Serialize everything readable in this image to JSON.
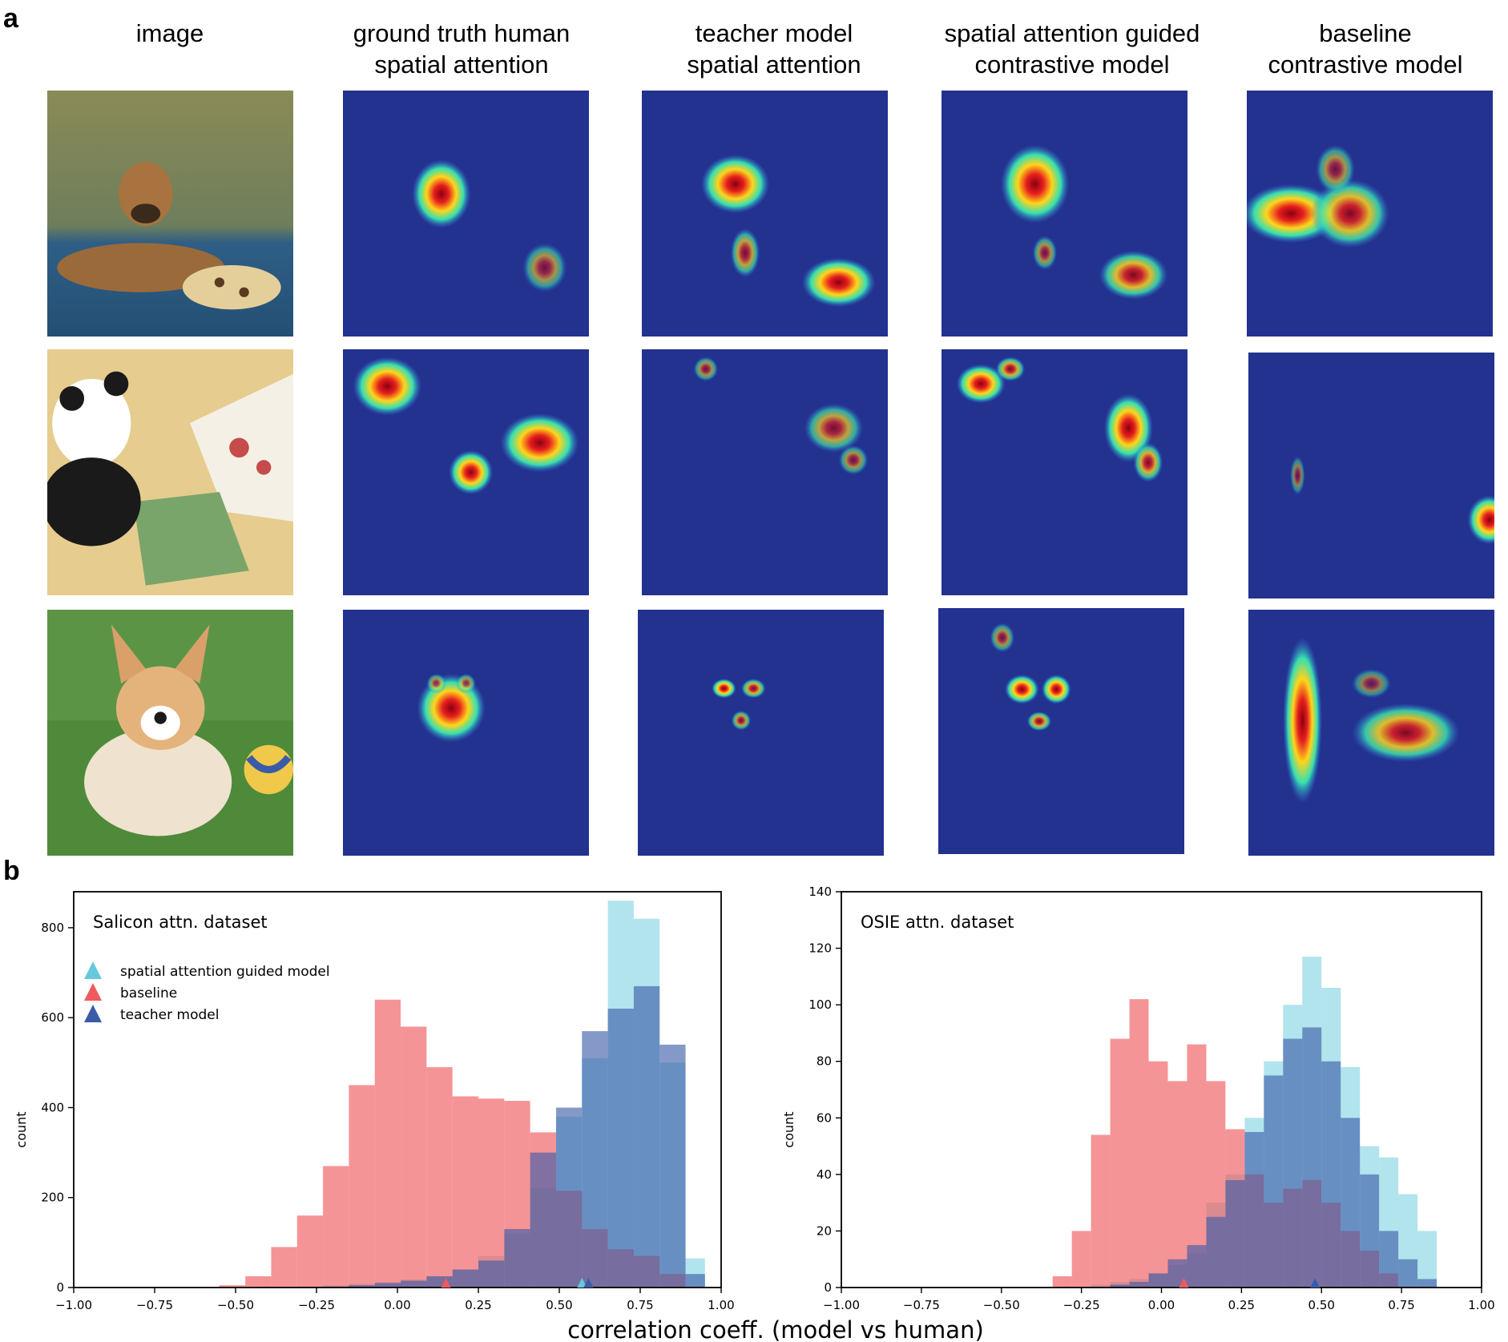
{
  "panels": {
    "a": "a",
    "b": "b"
  },
  "columns": [
    {
      "line1": "image",
      "line2": ""
    },
    {
      "line1": "ground truth human",
      "line2": "spatial attention"
    },
    {
      "line1": "teacher model",
      "line2": "spatial attention"
    },
    {
      "line1": "spatial attention guided",
      "line2": "contrastive model"
    },
    {
      "line1": "baseline",
      "line2": "contrastive model"
    }
  ],
  "rows": [
    {
      "subject": "puppy-on-blue-mat"
    },
    {
      "subject": "panda-plush-and-flower-card"
    },
    {
      "subject": "corgi-puppy-on-grass"
    }
  ],
  "colors": {
    "guided": "#66c9dc",
    "baseline": "#f05a5e",
    "teacher": "#3a5ba8",
    "heat_low": "#1e2b8c",
    "heat_high": "#d7191c"
  },
  "xlabel": "correlation coeff. (model vs human)",
  "chart_data": [
    {
      "type": "bar",
      "title": "Salicon attn. dataset",
      "xlabel": "correlation coeff. (model vs human)",
      "ylabel": "count",
      "xlim": [
        -1.0,
        1.0
      ],
      "ylim": [
        0,
        880
      ],
      "xticks": [
        -1.0,
        -0.75,
        -0.5,
        -0.25,
        0.0,
        0.25,
        0.5,
        0.75,
        1.0
      ],
      "xtick_labels": [
        "−1.00",
        "−0.75",
        "−0.50",
        "−0.25",
        "0.00",
        "0.25",
        "0.50",
        "0.75",
        "1.00"
      ],
      "yticks": [
        0,
        200,
        400,
        600,
        800
      ],
      "ytick_labels": [
        "0",
        "200",
        "400",
        "600",
        "800"
      ],
      "legend_position": "upper-left",
      "bin_edges": [
        -0.55,
        -0.47,
        -0.39,
        -0.31,
        -0.23,
        -0.15,
        -0.07,
        0.01,
        0.09,
        0.17,
        0.25,
        0.33,
        0.41,
        0.49,
        0.57,
        0.65,
        0.73,
        0.81,
        0.89,
        0.95
      ],
      "series": [
        {
          "name": "spatial attention guided model",
          "color": "#66c9dc",
          "marker_x": 0.57,
          "values": [
            0,
            0,
            0,
            2,
            5,
            8,
            12,
            18,
            25,
            40,
            70,
            120,
            220,
            380,
            510,
            860,
            820,
            500,
            65
          ]
        },
        {
          "name": "baseline",
          "color": "#f05a5e",
          "marker_x": 0.15,
          "values": [
            5,
            25,
            90,
            160,
            270,
            450,
            640,
            580,
            490,
            425,
            420,
            415,
            345,
            215,
            130,
            85,
            70,
            30,
            0
          ]
        },
        {
          "name": "teacher model",
          "color": "#3a5ba8",
          "marker_x": 0.59,
          "values": [
            0,
            0,
            0,
            0,
            2,
            5,
            10,
            15,
            25,
            40,
            60,
            130,
            300,
            400,
            570,
            620,
            670,
            540,
            30
          ]
        }
      ]
    },
    {
      "type": "bar",
      "title": "OSIE attn. dataset",
      "xlabel": "correlation coeff. (model vs human)",
      "ylabel": "count",
      "xlim": [
        -1.0,
        1.0
      ],
      "ylim": [
        0,
        140
      ],
      "xticks": [
        -1.0,
        -0.75,
        -0.5,
        -0.25,
        0.0,
        0.25,
        0.5,
        0.75,
        1.0
      ],
      "xtick_labels": [
        "−1.00",
        "−0.75",
        "−0.50",
        "−0.25",
        "0.00",
        "0.25",
        "0.50",
        "0.75",
        "1.00"
      ],
      "yticks": [
        0,
        20,
        40,
        60,
        80,
        100,
        120,
        140
      ],
      "ytick_labels": [
        "0",
        "20",
        "40",
        "60",
        "80",
        "100",
        "120",
        "140"
      ],
      "bin_edges": [
        -0.34,
        -0.28,
        -0.22,
        -0.16,
        -0.1,
        -0.04,
        0.02,
        0.08,
        0.14,
        0.2,
        0.26,
        0.32,
        0.38,
        0.44,
        0.5,
        0.56,
        0.62,
        0.68,
        0.74,
        0.8,
        0.86
      ],
      "series": [
        {
          "name": "spatial attention guided model",
          "color": "#66c9dc",
          "marker_x": 0.48,
          "values": [
            0,
            0,
            1,
            2,
            3,
            5,
            8,
            12,
            30,
            40,
            60,
            80,
            100,
            117,
            106,
            78,
            50,
            46,
            33,
            20
          ]
        },
        {
          "name": "baseline",
          "color": "#f05a5e",
          "marker_x": 0.07,
          "values": [
            4,
            20,
            54,
            88,
            102,
            80,
            73,
            86,
            73,
            56,
            40,
            30,
            35,
            38,
            30,
            20,
            13,
            5,
            0,
            0
          ]
        },
        {
          "name": "teacher model",
          "color": "#3a5ba8",
          "marker_x": 0.48,
          "values": [
            0,
            0,
            0,
            1,
            2,
            5,
            10,
            15,
            25,
            38,
            55,
            75,
            88,
            92,
            80,
            60,
            40,
            20,
            10,
            3
          ]
        }
      ]
    }
  ]
}
